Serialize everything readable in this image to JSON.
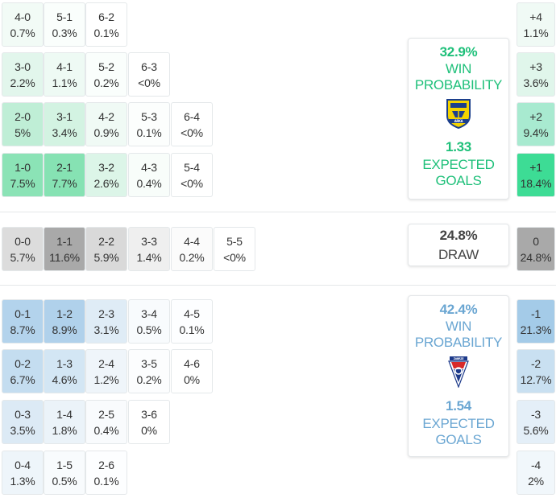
{
  "colors": {
    "home_accent": "#1fc07a",
    "away_accent": "#6aa6d2",
    "draw_accent": "#444444"
  },
  "home_scores": [
    {
      "score": "4-0",
      "pct": "0.7%",
      "bg": "#f2fbf6"
    },
    {
      "score": "5-1",
      "pct": "0.3%",
      "bg": "#fafefc"
    },
    {
      "score": "6-2",
      "pct": "0.1%",
      "bg": "#ffffff"
    },
    {
      "score": "3-0",
      "pct": "2.2%",
      "bg": "#e2f6ec"
    },
    {
      "score": "4-1",
      "pct": "1.1%",
      "bg": "#eefaf4"
    },
    {
      "score": "5-2",
      "pct": "0.2%",
      "bg": "#fafefc"
    },
    {
      "score": "6-3",
      "pct": "<0%",
      "bg": "#ffffff"
    },
    {
      "score": "2-0",
      "pct": "5%",
      "bg": "#bfeed6"
    },
    {
      "score": "3-1",
      "pct": "3.4%",
      "bg": "#d3f3e2"
    },
    {
      "score": "4-2",
      "pct": "0.9%",
      "bg": "#f0faf5"
    },
    {
      "score": "5-3",
      "pct": "0.1%",
      "bg": "#fcfefd"
    },
    {
      "score": "6-4",
      "pct": "<0%",
      "bg": "#ffffff"
    },
    {
      "score": "1-0",
      "pct": "7.5%",
      "bg": "#8be3b6"
    },
    {
      "score": "2-1",
      "pct": "7.7%",
      "bg": "#86e2b3"
    },
    {
      "score": "3-2",
      "pct": "2.6%",
      "bg": "#dcf5e8"
    },
    {
      "score": "4-3",
      "pct": "0.4%",
      "bg": "#f8fdfa"
    },
    {
      "score": "5-4",
      "pct": "<0%",
      "bg": "#ffffff"
    }
  ],
  "draw_scores": [
    {
      "score": "0-0",
      "pct": "5.7%",
      "bg": "#dcdcdc"
    },
    {
      "score": "1-1",
      "pct": "11.6%",
      "bg": "#a9a9a9"
    },
    {
      "score": "2-2",
      "pct": "5.9%",
      "bg": "#d9d9d9"
    },
    {
      "score": "3-3",
      "pct": "1.4%",
      "bg": "#efefef"
    },
    {
      "score": "4-4",
      "pct": "0.2%",
      "bg": "#fbfbfb"
    },
    {
      "score": "5-5",
      "pct": "<0%",
      "bg": "#ffffff"
    }
  ],
  "away_scores": [
    {
      "score": "0-1",
      "pct": "8.7%",
      "bg": "#b3d3ec"
    },
    {
      "score": "1-2",
      "pct": "8.9%",
      "bg": "#b0d1eb"
    },
    {
      "score": "2-3",
      "pct": "3.1%",
      "bg": "#dfecf6"
    },
    {
      "score": "3-4",
      "pct": "0.5%",
      "bg": "#f8fbfd"
    },
    {
      "score": "4-5",
      "pct": "0.1%",
      "bg": "#fdfeff"
    },
    {
      "score": "0-2",
      "pct": "6.7%",
      "bg": "#c4ddf0"
    },
    {
      "score": "1-3",
      "pct": "4.6%",
      "bg": "#d3e6f4"
    },
    {
      "score": "2-4",
      "pct": "1.2%",
      "bg": "#eff5fa"
    },
    {
      "score": "3-5",
      "pct": "0.2%",
      "bg": "#fcfdfe"
    },
    {
      "score": "4-6",
      "pct": "0%",
      "bg": "#ffffff"
    },
    {
      "score": "0-3",
      "pct": "3.5%",
      "bg": "#dceaf5"
    },
    {
      "score": "1-4",
      "pct": "1.8%",
      "bg": "#ebf3f9"
    },
    {
      "score": "2-5",
      "pct": "0.4%",
      "bg": "#f9fbfd"
    },
    {
      "score": "3-6",
      "pct": "0%",
      "bg": "#ffffff"
    },
    {
      "score": "0-4",
      "pct": "1.3%",
      "bg": "#eef5fa"
    },
    {
      "score": "1-5",
      "pct": "0.5%",
      "bg": "#f8fbfd"
    },
    {
      "score": "2-6",
      "pct": "0.1%",
      "bg": "#fdfeff"
    }
  ],
  "margins": [
    {
      "label": "+4",
      "pct": "1.1%",
      "bg": "#f0faf5"
    },
    {
      "label": "+3",
      "pct": "3.6%",
      "bg": "#e0f6eb"
    },
    {
      "label": "+2",
      "pct": "9.4%",
      "bg": "#a8ead0"
    },
    {
      "label": "+1",
      "pct": "18.4%",
      "bg": "#3ddc95"
    },
    {
      "label": "0",
      "pct": "24.8%",
      "bg": "#a9a9a9"
    },
    {
      "label": "-1",
      "pct": "21.3%",
      "bg": "#a4cbe8"
    },
    {
      "label": "-2",
      "pct": "12.7%",
      "bg": "#c9e0f1"
    },
    {
      "label": "-3",
      "pct": "5.6%",
      "bg": "#e4eff8"
    },
    {
      "label": "-4",
      "pct": "2%",
      "bg": "#f1f7fb"
    }
  ],
  "home_card": {
    "win_prob": "32.9%",
    "win_label_1": "WIN",
    "win_label_2": "PROBABILITY",
    "xg": "1.33",
    "xg_label_1": "EXPECTED",
    "xg_label_2": "GOALS",
    "crest_icon": "arka-crest",
    "crest_text": "ARKA"
  },
  "draw_card": {
    "prob": "24.8%",
    "label": "DRAW"
  },
  "away_card": {
    "win_prob": "42.4%",
    "win_label_1": "WIN",
    "win_label_2": "PROBABILITY",
    "xg": "1.54",
    "xg_label_1": "EXPECTED",
    "xg_label_2": "GOALS",
    "crest_icon": "gornik-crest",
    "crest_text": "ZABRZE"
  }
}
